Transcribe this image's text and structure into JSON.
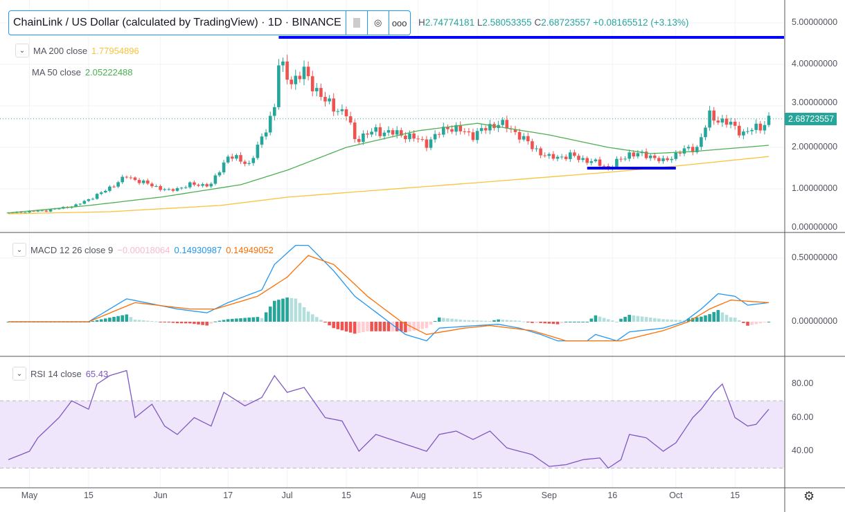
{
  "header": {
    "symbol_title": "ChainLink / US Dollar (calculated by TradingView) · 1D · BINANCE",
    "ohlc": {
      "h_label": "H",
      "h": "2.74774181",
      "l_label": "L",
      "l": "2.58053355",
      "c_label": "C",
      "c": "2.68723557",
      "change": "+0.08165512 (+3.13%)"
    },
    "buttons": [
      "flag-icon",
      "source-icon",
      "more-icon"
    ]
  },
  "indicators": {
    "ma200": {
      "label": "MA 200 close",
      "value": "1.77954896",
      "color": "#f9c33a"
    },
    "ma50": {
      "label": "MA 50 close",
      "value": "2.05222488",
      "color": "#4caf50"
    },
    "macd": {
      "label": "MACD 12 26 close 9",
      "hist": "−0.00018064",
      "macd": "0.14930987",
      "signal": "0.14949052",
      "macd_color": "#2196f3",
      "signal_color": "#ff6d00"
    },
    "rsi": {
      "label": "RSI 14 close",
      "value": "65.43",
      "color": "#7e57c2"
    }
  },
  "price_axis": [
    "5.00000000",
    "4.00000000",
    "3.00000000",
    "2.00000000",
    "1.00000000",
    "0.00000000"
  ],
  "macd_axis": [
    "0.50000000",
    "0.00000000"
  ],
  "rsi_axis": [
    "80.00",
    "60.00",
    "40.00"
  ],
  "last_price": "2.68723557",
  "time_axis": [
    {
      "label": "May",
      "date": "05-01"
    },
    {
      "label": "15",
      "date": "05-15"
    },
    {
      "label": "Jun",
      "date": "06-01"
    },
    {
      "label": "17",
      "date": "06-17"
    },
    {
      "label": "Jul",
      "date": "07-01"
    },
    {
      "label": "15",
      "date": "07-15"
    },
    {
      "label": "Aug",
      "date": "08-01"
    },
    {
      "label": "15",
      "date": "08-15"
    },
    {
      "label": "Sep",
      "date": "09-01"
    },
    {
      "label": "16",
      "date": "09-16"
    },
    {
      "label": "Oct",
      "date": "10-01"
    },
    {
      "label": "15",
      "date": "10-15"
    }
  ],
  "colors": {
    "up": "#26a69a",
    "down": "#ef5350",
    "drawing": "#0000ff",
    "rsi_band": "#f0e6fb"
  },
  "chart_data": {
    "type": "candlestick",
    "start_date": "04-26",
    "end_date": "10-23",
    "close_keypoints": [
      [
        "04-26",
        0.42
      ],
      [
        "05-05",
        0.48
      ],
      [
        "05-12",
        0.6
      ],
      [
        "05-18",
        0.9
      ],
      [
        "05-24",
        1.3
      ],
      [
        "05-28",
        1.15
      ],
      [
        "06-03",
        0.95
      ],
      [
        "06-08",
        1.1
      ],
      [
        "06-13",
        1.1
      ],
      [
        "06-17",
        1.8
      ],
      [
        "06-22",
        1.6
      ],
      [
        "06-25",
        2.2
      ],
      [
        "06-28",
        3.0
      ],
      [
        "06-29",
        4.0
      ],
      [
        "07-02",
        3.6
      ],
      [
        "07-05",
        3.8
      ],
      [
        "07-10",
        3.1
      ],
      [
        "07-15",
        2.8
      ],
      [
        "07-17",
        2.2
      ],
      [
        "07-22",
        2.4
      ],
      [
        "07-29",
        2.3
      ],
      [
        "08-03",
        2.1
      ],
      [
        "08-08",
        2.5
      ],
      [
        "08-14",
        2.3
      ],
      [
        "08-20",
        2.6
      ],
      [
        "08-25",
        2.3
      ],
      [
        "08-28",
        2.0
      ],
      [
        "09-01",
        1.75
      ],
      [
        "09-06",
        1.8
      ],
      [
        "09-13",
        1.6
      ],
      [
        "09-15",
        1.5
      ],
      [
        "09-20",
        1.85
      ],
      [
        "09-25",
        1.8
      ],
      [
        "09-28",
        1.65
      ],
      [
        "10-02",
        1.9
      ],
      [
        "10-06",
        2.0
      ],
      [
        "10-09",
        2.75
      ],
      [
        "10-13",
        2.6
      ],
      [
        "10-17",
        2.35
      ],
      [
        "10-21",
        2.5
      ],
      [
        "10-23",
        2.69
      ]
    ],
    "ma200_keypoints": [
      [
        "04-26",
        0.4
      ],
      [
        "05-20",
        0.45
      ],
      [
        "06-15",
        0.6
      ],
      [
        "07-01",
        0.8
      ],
      [
        "07-20",
        0.95
      ],
      [
        "08-15",
        1.15
      ],
      [
        "09-15",
        1.4
      ],
      [
        "10-01",
        1.55
      ],
      [
        "10-23",
        1.78
      ]
    ],
    "ma50_keypoints": [
      [
        "04-26",
        0.42
      ],
      [
        "05-15",
        0.6
      ],
      [
        "06-01",
        0.8
      ],
      [
        "06-20",
        1.1
      ],
      [
        "07-01",
        1.45
      ],
      [
        "07-15",
        2.0
      ],
      [
        "08-01",
        2.4
      ],
      [
        "08-15",
        2.58
      ],
      [
        "09-01",
        2.3
      ],
      [
        "09-15",
        2.0
      ],
      [
        "09-25",
        1.85
      ],
      [
        "10-05",
        1.9
      ],
      [
        "10-23",
        2.05
      ]
    ],
    "macd_keypoints": [
      [
        "04-26",
        0.0
      ],
      [
        "05-15",
        0.0
      ],
      [
        "05-24",
        0.18
      ],
      [
        "06-05",
        0.1
      ],
      [
        "06-12",
        0.07
      ],
      [
        "06-17",
        0.15
      ],
      [
        "06-25",
        0.25
      ],
      [
        "06-28",
        0.45
      ],
      [
        "07-03",
        0.6
      ],
      [
        "07-06",
        0.6
      ],
      [
        "07-12",
        0.4
      ],
      [
        "07-17",
        0.2
      ],
      [
        "07-25",
        0.0
      ],
      [
        "07-29",
        -0.1
      ],
      [
        "08-03",
        -0.15
      ],
      [
        "08-06",
        -0.05
      ],
      [
        "08-15",
        -0.03
      ],
      [
        "08-20",
        -0.02
      ],
      [
        "08-25",
        -0.05
      ],
      [
        "08-30",
        -0.1
      ],
      [
        "09-03",
        -0.15
      ],
      [
        "09-10",
        -0.15
      ],
      [
        "09-12",
        -0.1
      ],
      [
        "09-17",
        -0.15
      ],
      [
        "09-20",
        -0.08
      ],
      [
        "09-28",
        -0.05
      ],
      [
        "10-03",
        0.0
      ],
      [
        "10-07",
        0.1
      ],
      [
        "10-11",
        0.22
      ],
      [
        "10-15",
        0.2
      ],
      [
        "10-18",
        0.13
      ],
      [
        "10-23",
        0.15
      ]
    ],
    "signal_keypoints": [
      [
        "04-26",
        0.0
      ],
      [
        "05-15",
        0.0
      ],
      [
        "05-26",
        0.15
      ],
      [
        "06-08",
        0.1
      ],
      [
        "06-14",
        0.1
      ],
      [
        "06-24",
        0.2
      ],
      [
        "07-01",
        0.35
      ],
      [
        "07-06",
        0.52
      ],
      [
        "07-12",
        0.45
      ],
      [
        "07-20",
        0.2
      ],
      [
        "07-28",
        0.0
      ],
      [
        "08-03",
        -0.1
      ],
      [
        "08-12",
        -0.05
      ],
      [
        "08-18",
        -0.03
      ],
      [
        "08-28",
        -0.07
      ],
      [
        "09-05",
        -0.15
      ],
      [
        "09-18",
        -0.15
      ],
      [
        "09-28",
        -0.07
      ],
      [
        "10-04",
        0.0
      ],
      [
        "10-09",
        0.1
      ],
      [
        "10-14",
        0.17
      ],
      [
        "10-23",
        0.15
      ]
    ],
    "rsi_keypoints": [
      [
        "04-26",
        35
      ],
      [
        "05-01",
        40
      ],
      [
        "05-03",
        48
      ],
      [
        "05-08",
        60
      ],
      [
        "05-11",
        70
      ],
      [
        "05-15",
        65
      ],
      [
        "05-17",
        80
      ],
      [
        "05-20",
        85
      ],
      [
        "05-24",
        88
      ],
      [
        "05-26",
        60
      ],
      [
        "05-30",
        68
      ],
      [
        "06-02",
        55
      ],
      [
        "06-05",
        50
      ],
      [
        "06-09",
        60
      ],
      [
        "06-13",
        55
      ],
      [
        "06-16",
        75
      ],
      [
        "06-21",
        67
      ],
      [
        "06-25",
        72
      ],
      [
        "06-28",
        85
      ],
      [
        "07-01",
        75
      ],
      [
        "07-05",
        78
      ],
      [
        "07-10",
        60
      ],
      [
        "07-14",
        58
      ],
      [
        "07-18",
        40
      ],
      [
        "07-22",
        50
      ],
      [
        "07-28",
        45
      ],
      [
        "08-03",
        40
      ],
      [
        "08-06",
        50
      ],
      [
        "08-10",
        52
      ],
      [
        "08-14",
        47
      ],
      [
        "08-18",
        52
      ],
      [
        "08-22",
        42
      ],
      [
        "08-28",
        38
      ],
      [
        "09-01",
        31
      ],
      [
        "09-05",
        32
      ],
      [
        "09-09",
        35
      ],
      [
        "09-13",
        36
      ],
      [
        "09-15",
        30
      ],
      [
        "09-18",
        35
      ],
      [
        "09-20",
        50
      ],
      [
        "09-24",
        48
      ],
      [
        "09-28",
        40
      ],
      [
        "10-01",
        45
      ],
      [
        "10-05",
        60
      ],
      [
        "10-07",
        65
      ],
      [
        "10-10",
        75
      ],
      [
        "10-12",
        80
      ],
      [
        "10-15",
        60
      ],
      [
        "10-18",
        55
      ],
      [
        "10-20",
        56
      ],
      [
        "10-23",
        65
      ]
    ],
    "rsi_band": [
      30,
      70
    ],
    "drawings": [
      {
        "type": "hline",
        "price": 4.65,
        "from": "06-29",
        "to": "end"
      },
      {
        "type": "hline",
        "price": 1.5,
        "from": "09-10",
        "to": "10-01"
      }
    ]
  }
}
